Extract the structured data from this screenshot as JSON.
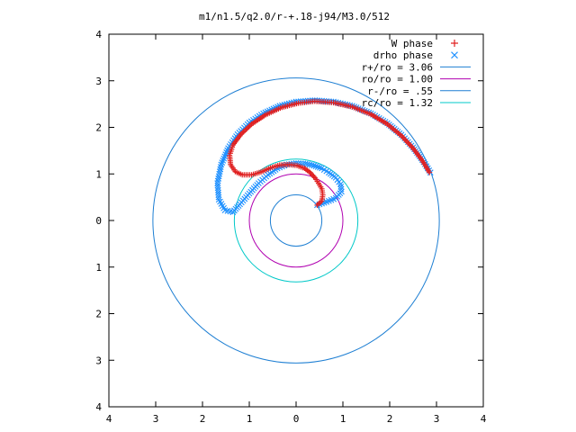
{
  "chart_data": {
    "type": "scatter",
    "title": "m1/n1.5/q2.0/r-+.18-j94/M3.0/512",
    "xlabel": "",
    "ylabel": "",
    "xlim": [
      -4,
      4
    ],
    "ylim": [
      -4,
      4
    ],
    "x_tick_values": [
      -4,
      -3,
      -2,
      -1,
      0,
      1,
      2,
      3,
      4
    ],
    "x_tick_labels": [
      "4",
      "3",
      "2",
      "1",
      "0",
      "1",
      "2",
      "3",
      "4"
    ],
    "y_tick_values": [
      4,
      3,
      2,
      1,
      0,
      -1,
      -2,
      -3,
      -4
    ],
    "y_tick_labels": [
      "4",
      "3",
      "2",
      "1",
      "0",
      "1",
      "2",
      "3",
      "4"
    ],
    "grid": false,
    "legend_position": "top-right",
    "circles": [
      {
        "name": "r+/ro = 3.06",
        "radius": 3.06,
        "color": "#1e7fd3"
      },
      {
        "name": "ro/ro = 1.00",
        "radius": 1.0,
        "color": "#b000b0"
      },
      {
        "name": "r-/ro = .55",
        "radius": 0.55,
        "color": "#1e7fd3"
      },
      {
        "name": "rc/ro = 1.32",
        "radius": 1.32,
        "color": "#00c8c8"
      }
    ],
    "series": [
      {
        "name": "W phase",
        "marker": "+",
        "color": "#e02020",
        "path": [
          [
            0.45,
            0.33
          ],
          [
            0.55,
            0.42
          ],
          [
            0.57,
            0.55
          ],
          [
            0.55,
            0.68
          ],
          [
            0.48,
            0.8
          ],
          [
            0.4,
            0.92
          ],
          [
            0.3,
            1.03
          ],
          [
            0.18,
            1.12
          ],
          [
            0.02,
            1.18
          ],
          [
            -0.15,
            1.2
          ],
          [
            -0.35,
            1.19
          ],
          [
            -0.55,
            1.13
          ],
          [
            -0.75,
            1.04
          ],
          [
            -0.95,
            0.98
          ],
          [
            -1.15,
            0.98
          ],
          [
            -1.3,
            1.05
          ],
          [
            -1.4,
            1.2
          ],
          [
            -1.42,
            1.4
          ],
          [
            -1.35,
            1.62
          ],
          [
            -1.18,
            1.85
          ],
          [
            -0.95,
            2.07
          ],
          [
            -0.65,
            2.27
          ],
          [
            -0.3,
            2.43
          ],
          [
            0.05,
            2.52
          ],
          [
            0.4,
            2.56
          ],
          [
            0.8,
            2.53
          ],
          [
            1.2,
            2.44
          ],
          [
            1.6,
            2.28
          ],
          [
            1.95,
            2.07
          ],
          [
            2.25,
            1.82
          ],
          [
            2.5,
            1.55
          ],
          [
            2.7,
            1.28
          ],
          [
            2.85,
            1.03
          ]
        ]
      },
      {
        "name": "drho phase",
        "marker": "x",
        "color": "#1e90ff",
        "path": [
          [
            0.45,
            0.33
          ],
          [
            0.65,
            0.4
          ],
          [
            0.85,
            0.48
          ],
          [
            0.97,
            0.62
          ],
          [
            0.95,
            0.78
          ],
          [
            0.85,
            0.92
          ],
          [
            0.7,
            1.03
          ],
          [
            0.55,
            1.12
          ],
          [
            0.38,
            1.18
          ],
          [
            0.2,
            1.22
          ],
          [
            0.0,
            1.23
          ],
          [
            -0.2,
            1.2
          ],
          [
            -0.4,
            1.12
          ],
          [
            -0.6,
            0.98
          ],
          [
            -0.8,
            0.8
          ],
          [
            -1.0,
            0.58
          ],
          [
            -1.2,
            0.35
          ],
          [
            -1.35,
            0.18
          ],
          [
            -1.52,
            0.22
          ],
          [
            -1.65,
            0.45
          ],
          [
            -1.68,
            0.8
          ],
          [
            -1.6,
            1.2
          ],
          [
            -1.45,
            1.55
          ],
          [
            -1.25,
            1.85
          ],
          [
            -1.0,
            2.1
          ],
          [
            -0.7,
            2.3
          ],
          [
            -0.35,
            2.46
          ],
          [
            0.0,
            2.55
          ],
          [
            0.4,
            2.58
          ],
          [
            0.8,
            2.55
          ],
          [
            1.2,
            2.46
          ],
          [
            1.6,
            2.3
          ],
          [
            1.95,
            2.09
          ],
          [
            2.25,
            1.84
          ],
          [
            2.5,
            1.57
          ],
          [
            2.7,
            1.3
          ],
          [
            2.87,
            1.03
          ]
        ]
      }
    ]
  }
}
